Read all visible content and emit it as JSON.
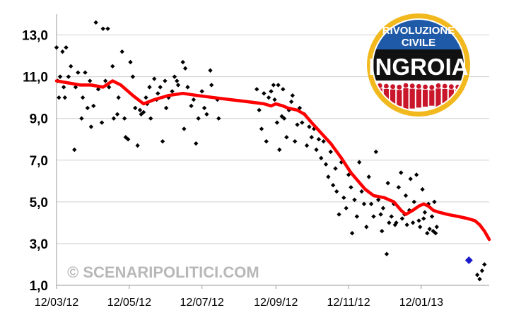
{
  "chart_data": {
    "type": "scatter",
    "title": "",
    "xlabel": "",
    "ylabel": "",
    "x_ticks": [
      "12/03/12",
      "12/05/12",
      "12/07/12",
      "12/09/12",
      "12/11/12",
      "12/01/13"
    ],
    "x_range": [
      "2012-03-12",
      "2013-03-10"
    ],
    "y_ticks": [
      "1,0",
      "3,0",
      "5,0",
      "7,0",
      "9,0",
      "11,0",
      "13,0"
    ],
    "ylim": [
      1.0,
      14.0
    ],
    "grid": "horizontal",
    "colors": {
      "points": "#000000",
      "trend": "#ff0000",
      "highlight": "#1a1acc"
    },
    "series": [
      {
        "type": "scatter",
        "points": [
          [
            "2012-03-12",
            12.4
          ],
          [
            "2012-03-13",
            10.8
          ],
          [
            "2012-03-14",
            10.0
          ],
          [
            "2012-03-15",
            11.0
          ],
          [
            "2012-03-17",
            12.2
          ],
          [
            "2012-03-18",
            10.5
          ],
          [
            "2012-03-19",
            10.0
          ],
          [
            "2012-03-20",
            12.4
          ],
          [
            "2012-03-22",
            11.0
          ],
          [
            "2012-03-24",
            11.5
          ],
          [
            "2012-03-27",
            7.5
          ],
          [
            "2012-03-28",
            10.5
          ],
          [
            "2012-03-30",
            11.2
          ],
          [
            "2012-04-02",
            9.0
          ],
          [
            "2012-04-03",
            10.0
          ],
          [
            "2012-04-05",
            11.2
          ],
          [
            "2012-04-07",
            9.5
          ],
          [
            "2012-04-09",
            10.8
          ],
          [
            "2012-04-10",
            8.6
          ],
          [
            "2012-04-12",
            9.6
          ],
          [
            "2012-04-14",
            13.6
          ],
          [
            "2012-04-16",
            10.4
          ],
          [
            "2012-04-19",
            8.8
          ],
          [
            "2012-04-20",
            13.3
          ],
          [
            "2012-04-22",
            10.8
          ],
          [
            "2012-04-24",
            13.3
          ],
          [
            "2012-04-25",
            10.5
          ],
          [
            "2012-04-28",
            11.5
          ],
          [
            "2012-04-29",
            9.0
          ],
          [
            "2012-05-02",
            9.2
          ],
          [
            "2012-05-03",
            10.0
          ],
          [
            "2012-05-06",
            12.2
          ],
          [
            "2012-05-08",
            9.0
          ],
          [
            "2012-05-09",
            8.1
          ],
          [
            "2012-05-11",
            8.0
          ],
          [
            "2012-05-13",
            11.7
          ],
          [
            "2012-05-15",
            11.0
          ],
          [
            "2012-05-17",
            9.5
          ],
          [
            "2012-05-19",
            7.7
          ],
          [
            "2012-05-21",
            9.4
          ],
          [
            "2012-05-22",
            9.2
          ],
          [
            "2012-05-24",
            9.3
          ],
          [
            "2012-05-26",
            10.0
          ],
          [
            "2012-05-27",
            9.7
          ],
          [
            "2012-05-29",
            10.5
          ],
          [
            "2012-05-30",
            9.0
          ],
          [
            "2012-06-02",
            10.9
          ],
          [
            "2012-06-04",
            9.9
          ],
          [
            "2012-06-05",
            10.2
          ],
          [
            "2012-06-07",
            10.5
          ],
          [
            "2012-06-09",
            7.9
          ],
          [
            "2012-06-11",
            10.8
          ],
          [
            "2012-06-12",
            9.5
          ],
          [
            "2012-06-14",
            10.0
          ],
          [
            "2012-06-17",
            10.3
          ],
          [
            "2012-06-19",
            11.0
          ],
          [
            "2012-06-21",
            10.8
          ],
          [
            "2012-06-22",
            10.6
          ],
          [
            "2012-06-26",
            11.7
          ],
          [
            "2012-06-27",
            8.5
          ],
          [
            "2012-06-28",
            11.4
          ],
          [
            "2012-06-30",
            10.5
          ],
          [
            "2012-07-03",
            9.6
          ],
          [
            "2012-07-05",
            9.9
          ],
          [
            "2012-07-07",
            7.8
          ],
          [
            "2012-07-09",
            9.0
          ],
          [
            "2012-07-12",
            10.3
          ],
          [
            "2012-07-14",
            9.5
          ],
          [
            "2012-07-16",
            9.2
          ],
          [
            "2012-07-19",
            11.3
          ],
          [
            "2012-07-20",
            10.6
          ],
          [
            "2012-07-25",
            9.9
          ],
          [
            "2012-07-26",
            9.0
          ],
          [
            "2012-08-27",
            10.4
          ],
          [
            "2012-08-29",
            9.4
          ],
          [
            "2012-08-31",
            8.5
          ],
          [
            "2012-09-02",
            10.2
          ],
          [
            "2012-09-04",
            7.9
          ],
          [
            "2012-09-06",
            10.0
          ],
          [
            "2012-09-08",
            10.3
          ],
          [
            "2012-09-10",
            10.6
          ],
          [
            "2012-09-11",
            9.9
          ],
          [
            "2012-09-13",
            8.8
          ],
          [
            "2012-09-14",
            10.6
          ],
          [
            "2012-09-15",
            7.5
          ],
          [
            "2012-09-17",
            9.1
          ],
          [
            "2012-09-18",
            10.4
          ],
          [
            "2012-09-19",
            9.0
          ],
          [
            "2012-09-21",
            8.1
          ],
          [
            "2012-09-23",
            9.4
          ],
          [
            "2012-09-25",
            9.8
          ],
          [
            "2012-09-26",
            10.1
          ],
          [
            "2012-09-28",
            7.9
          ],
          [
            "2012-09-30",
            8.7
          ],
          [
            "2012-10-02",
            9.5
          ],
          [
            "2012-10-04",
            8.8
          ],
          [
            "2012-10-06",
            9.2
          ],
          [
            "2012-10-08",
            7.7
          ],
          [
            "2012-10-10",
            8.6
          ],
          [
            "2012-10-12",
            8.1
          ],
          [
            "2012-10-14",
            8.5
          ],
          [
            "2012-10-16",
            7.5
          ],
          [
            "2012-10-18",
            8.0
          ],
          [
            "2012-10-20",
            7.1
          ],
          [
            "2012-10-22",
            7.9
          ],
          [
            "2012-10-24",
            6.8
          ],
          [
            "2012-10-26",
            6.2
          ],
          [
            "2012-10-28",
            7.4
          ],
          [
            "2012-10-30",
            5.8
          ],
          [
            "2012-11-01",
            6.6
          ],
          [
            "2012-11-02",
            5.5
          ],
          [
            "2012-11-04",
            4.4
          ],
          [
            "2012-11-06",
            6.9
          ],
          [
            "2012-11-08",
            5.2
          ],
          [
            "2012-11-10",
            4.7
          ],
          [
            "2012-11-12",
            6.3
          ],
          [
            "2012-11-14",
            5.7
          ],
          [
            "2012-11-15",
            3.5
          ],
          [
            "2012-11-17",
            5.1
          ],
          [
            "2012-11-19",
            4.3
          ],
          [
            "2012-11-21",
            6.9
          ],
          [
            "2012-11-23",
            5.5
          ],
          [
            "2012-11-25",
            4.9
          ],
          [
            "2012-11-27",
            3.8
          ],
          [
            "2012-11-29",
            6.2
          ],
          [
            "2012-12-01",
            4.9
          ],
          [
            "2012-12-03",
            4.3
          ],
          [
            "2012-12-05",
            7.4
          ],
          [
            "2012-12-07",
            5.1
          ],
          [
            "2012-12-09",
            4.4
          ],
          [
            "2012-12-10",
            3.6
          ],
          [
            "2012-12-11",
            4.7
          ],
          [
            "2012-12-14",
            2.5
          ],
          [
            "2012-12-15",
            5.9
          ],
          [
            "2012-12-16",
            4.0
          ],
          [
            "2012-12-18",
            4.3
          ],
          [
            "2012-12-20",
            4.9
          ],
          [
            "2012-12-21",
            3.9
          ],
          [
            "2012-12-22",
            4.0
          ],
          [
            "2012-12-24",
            5.7
          ],
          [
            "2012-12-26",
            6.4
          ],
          [
            "2012-12-27",
            4.2
          ],
          [
            "2012-12-29",
            4.4
          ],
          [
            "2012-12-30",
            5.3
          ],
          [
            "2012-12-31",
            3.9
          ],
          [
            "2013-01-02",
            4.6
          ],
          [
            "2013-01-03",
            6.1
          ],
          [
            "2013-01-05",
            4.0
          ],
          [
            "2013-01-06",
            5.0
          ],
          [
            "2013-01-08",
            6.3
          ],
          [
            "2013-01-10",
            4.1
          ],
          [
            "2013-01-11",
            3.8
          ],
          [
            "2013-01-13",
            5.6
          ],
          [
            "2013-01-14",
            4.2
          ],
          [
            "2013-01-15",
            4.5
          ],
          [
            "2013-01-17",
            3.5
          ],
          [
            "2013-01-18",
            4.9
          ],
          [
            "2013-01-19",
            3.7
          ],
          [
            "2013-01-21",
            4.3
          ],
          [
            "2013-01-22",
            3.6
          ],
          [
            "2013-01-23",
            5.0
          ],
          [
            "2013-01-24",
            3.5
          ],
          [
            "2013-01-25",
            3.8
          ],
          [
            "2013-02-28",
            1.5
          ],
          [
            "2013-03-02",
            1.3
          ],
          [
            "2013-03-04",
            1.7
          ],
          [
            "2013-03-06",
            2.0
          ]
        ]
      },
      {
        "type": "line",
        "points": [
          [
            "2012-03-12",
            10.8
          ],
          [
            "2012-04-01",
            10.6
          ],
          [
            "2012-04-10",
            10.6
          ],
          [
            "2012-04-20",
            10.5
          ],
          [
            "2012-04-28",
            10.8
          ],
          [
            "2012-05-05",
            10.6
          ],
          [
            "2012-05-15",
            10.1
          ],
          [
            "2012-05-24",
            9.7
          ],
          [
            "2012-06-02",
            9.9
          ],
          [
            "2012-06-14",
            10.1
          ],
          [
            "2012-06-26",
            10.2
          ],
          [
            "2012-07-08",
            10.1
          ],
          [
            "2012-07-22",
            10.0
          ],
          [
            "2012-08-05",
            9.9
          ],
          [
            "2012-08-20",
            9.8
          ],
          [
            "2012-09-02",
            9.7
          ],
          [
            "2012-09-08",
            9.6
          ],
          [
            "2012-09-12",
            9.7
          ],
          [
            "2012-09-18",
            9.6
          ],
          [
            "2012-09-22",
            9.5
          ],
          [
            "2012-09-30",
            9.4
          ],
          [
            "2012-10-06",
            9.2
          ],
          [
            "2012-10-12",
            8.8
          ],
          [
            "2012-10-20",
            8.3
          ],
          [
            "2012-10-28",
            7.8
          ],
          [
            "2012-11-06",
            7.1
          ],
          [
            "2012-11-14",
            6.4
          ],
          [
            "2012-11-20",
            6.0
          ],
          [
            "2012-11-26",
            5.6
          ],
          [
            "2012-12-03",
            5.3
          ],
          [
            "2012-12-12",
            5.2
          ],
          [
            "2012-12-20",
            5.0
          ],
          [
            "2012-12-26",
            4.6
          ],
          [
            "2012-12-30",
            4.4
          ],
          [
            "2013-01-05",
            4.6
          ],
          [
            "2013-01-10",
            4.8
          ],
          [
            "2013-01-14",
            4.9
          ],
          [
            "2013-01-18",
            4.8
          ],
          [
            "2013-01-22",
            4.6
          ],
          [
            "2013-01-27",
            4.5
          ],
          [
            "2013-02-03",
            4.4
          ],
          [
            "2013-02-12",
            4.3
          ],
          [
            "2013-02-20",
            4.2
          ],
          [
            "2013-02-26",
            4.1
          ],
          [
            "2013-03-02",
            3.9
          ],
          [
            "2013-03-06",
            3.6
          ],
          [
            "2013-03-10",
            3.2
          ]
        ]
      },
      {
        "type": "scatter",
        "points": [
          [
            "2013-02-21",
            2.2
          ]
        ]
      }
    ]
  },
  "watermark": {
    "text": "© SCENARIPOLITICI.COM"
  },
  "logo": {
    "line1": "RIVOLUZIONE",
    "line2": "CIVILE",
    "line3": "INGROIA",
    "colors": {
      "ring": "#f2b91e",
      "band": "#111111",
      "crowd": "#c9162b",
      "top_fill": "#1f5aa8"
    }
  }
}
